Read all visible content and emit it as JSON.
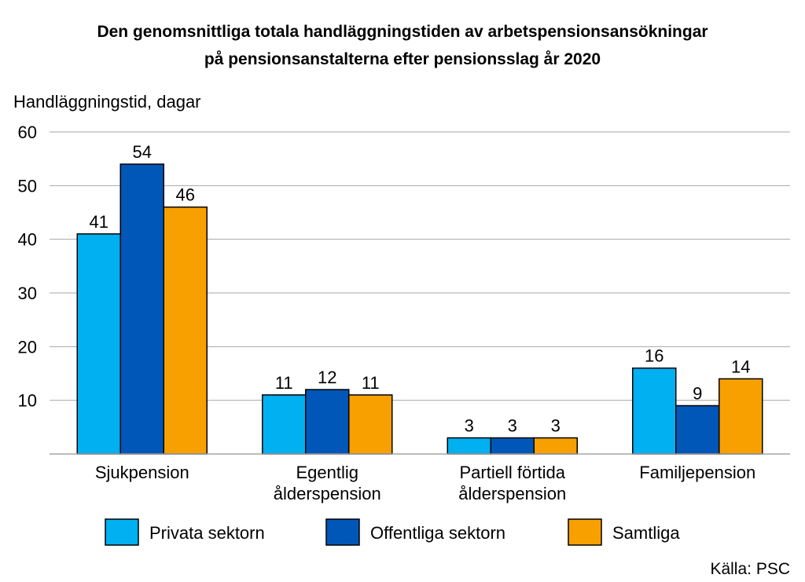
{
  "chart_data": {
    "type": "bar",
    "title": [
      "Den genomsnittliga totala handläggningstiden av arbetspensionsansökningar",
      "på pensionsanstalterna efter pensionsslag år 2020"
    ],
    "ylabel": "Handläggningstid, dagar",
    "xlabel": "",
    "ylim": [
      0,
      60
    ],
    "yticks": [
      10,
      20,
      30,
      40,
      50,
      60
    ],
    "grid": true,
    "legend_position": "bottom",
    "categories": [
      [
        "Sjukpension"
      ],
      [
        "Egentlig",
        "ålderspension"
      ],
      [
        "Partiell förtida",
        "ålderspension"
      ],
      [
        "Familjepension"
      ]
    ],
    "series": [
      {
        "name": "Privata sektorn",
        "color": "#00B0F0",
        "values": [
          41,
          11,
          3,
          16
        ]
      },
      {
        "name": "Offentliga sektorn",
        "color": "#0057B8",
        "values": [
          54,
          12,
          3,
          9
        ]
      },
      {
        "name": "Samtliga",
        "color": "#F7A000",
        "values": [
          46,
          11,
          3,
          14
        ]
      }
    ],
    "source": "Källa: PSC"
  }
}
